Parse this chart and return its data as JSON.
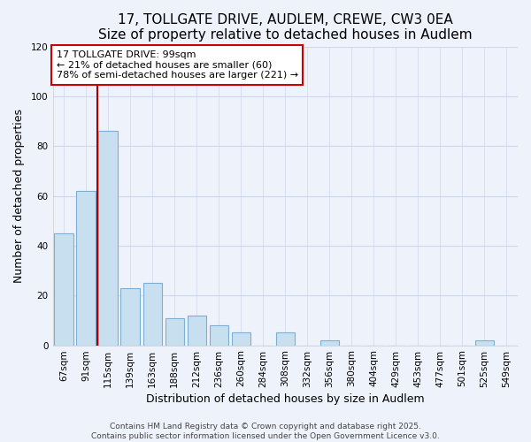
{
  "title": "17, TOLLGATE DRIVE, AUDLEM, CREWE, CW3 0EA",
  "subtitle": "Size of property relative to detached houses in Audlem",
  "xlabel": "Distribution of detached houses by size in Audlem",
  "ylabel": "Number of detached properties",
  "categories": [
    "67sqm",
    "91sqm",
    "115sqm",
    "139sqm",
    "163sqm",
    "188sqm",
    "212sqm",
    "236sqm",
    "260sqm",
    "284sqm",
    "308sqm",
    "332sqm",
    "356sqm",
    "380sqm",
    "404sqm",
    "429sqm",
    "453sqm",
    "477sqm",
    "501sqm",
    "525sqm",
    "549sqm"
  ],
  "values": [
    45,
    62,
    86,
    23,
    25,
    11,
    12,
    8,
    5,
    0,
    5,
    0,
    2,
    0,
    0,
    0,
    0,
    0,
    0,
    2,
    0
  ],
  "bar_color": "#c8dff0",
  "bar_edge_color": "#7bafd4",
  "vline_x": 1.5,
  "vline_color": "#aa0000",
  "annotation_text": "17 TOLLGATE DRIVE: 99sqm\n← 21% of detached houses are smaller (60)\n78% of semi-detached houses are larger (221) →",
  "annotation_box_color": "#ffffff",
  "annotation_box_edge_color": "#cc0000",
  "ylim": [
    0,
    120
  ],
  "yticks": [
    0,
    20,
    40,
    60,
    80,
    100,
    120
  ],
  "footer_line1": "Contains HM Land Registry data © Crown copyright and database right 2025.",
  "footer_line2": "Contains public sector information licensed under the Open Government Licence v3.0.",
  "background_color": "#eef2fb",
  "grid_color": "#d0d8ee",
  "title_fontsize": 11,
  "subtitle_fontsize": 9.5,
  "label_fontsize": 9,
  "tick_fontsize": 7.5,
  "footer_fontsize": 6.5,
  "annotation_fontsize": 8
}
